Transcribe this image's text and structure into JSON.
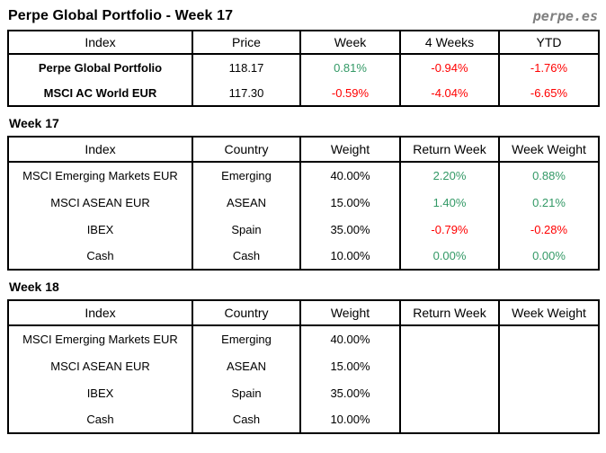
{
  "header": {
    "title": "Perpe Global Portfolio - Week 17",
    "brand": "perpe.es"
  },
  "colors": {
    "positive": "#339966",
    "negative": "#ff0000",
    "brand_gray": "#7f7f7f",
    "border": "#000000"
  },
  "summary_table": {
    "columns": [
      "Index",
      "Price",
      "Week",
      "4 Weeks",
      "YTD"
    ],
    "rows": [
      {
        "index": "Perpe Global Portfolio",
        "price": "118.17",
        "week": "0.81%",
        "four_weeks": "-0.94%",
        "ytd": "-1.76%"
      },
      {
        "index": "MSCI AC World EUR",
        "price": "117.30",
        "week": "-0.59%",
        "four_weeks": "-4.04%",
        "ytd": "-6.65%"
      }
    ]
  },
  "week17": {
    "heading": "Week 17",
    "columns": [
      "Index",
      "Country",
      "Weight",
      "Return Week",
      "Week Weight"
    ],
    "rows": [
      {
        "index": "MSCI Emerging Markets EUR",
        "country": "Emerging",
        "weight": "40.00%",
        "return_week": "2.20%",
        "week_weight": "0.88%"
      },
      {
        "index": "MSCI ASEAN EUR",
        "country": "ASEAN",
        "weight": "15.00%",
        "return_week": "1.40%",
        "week_weight": "0.21%"
      },
      {
        "index": "IBEX",
        "country": "Spain",
        "weight": "35.00%",
        "return_week": "-0.79%",
        "week_weight": "-0.28%"
      },
      {
        "index": "Cash",
        "country": "Cash",
        "weight": "10.00%",
        "return_week": "0.00%",
        "week_weight": "0.00%"
      }
    ]
  },
  "week18": {
    "heading": "Week 18",
    "columns": [
      "Index",
      "Country",
      "Weight",
      "Return Week",
      "Week Weight"
    ],
    "rows": [
      {
        "index": "MSCI Emerging Markets EUR",
        "country": "Emerging",
        "weight": "40.00%",
        "return_week": "",
        "week_weight": ""
      },
      {
        "index": "MSCI ASEAN EUR",
        "country": "ASEAN",
        "weight": "15.00%",
        "return_week": "",
        "week_weight": ""
      },
      {
        "index": "IBEX",
        "country": "Spain",
        "weight": "35.00%",
        "return_week": "",
        "week_weight": ""
      },
      {
        "index": "Cash",
        "country": "Cash",
        "weight": "10.00%",
        "return_week": "",
        "week_weight": ""
      }
    ]
  }
}
